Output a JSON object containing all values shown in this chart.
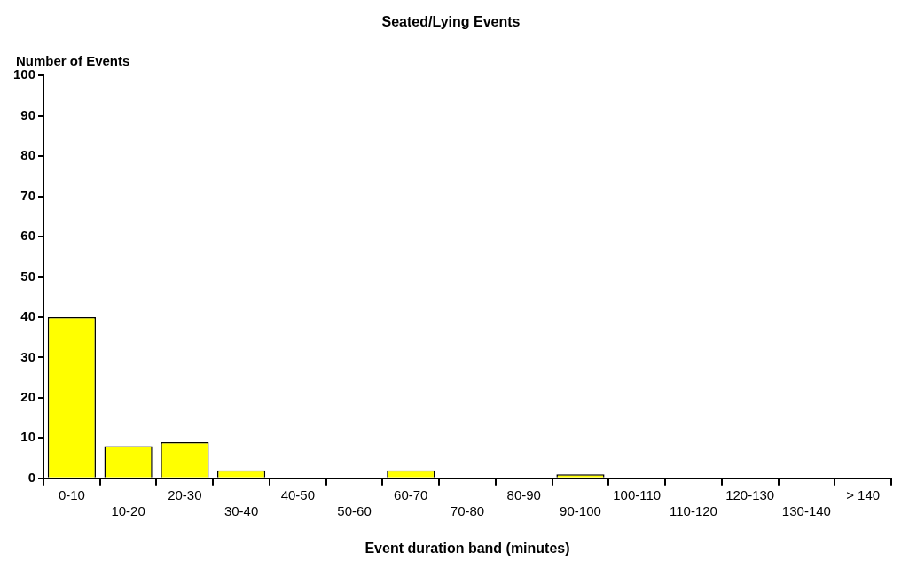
{
  "chart_data": {
    "type": "bar",
    "title": "Seated/Lying Events",
    "xlabel": "Event duration band (minutes)",
    "ylabel": "Number of Events",
    "categories": [
      "0-10",
      "10-20",
      "20-30",
      "30-40",
      "40-50",
      "50-60",
      "60-70",
      "70-80",
      "80-90",
      "90-100",
      "100-110",
      "110-120",
      "120-130",
      "130-140",
      "> 140"
    ],
    "values": [
      40,
      8,
      9,
      2,
      0,
      0,
      2,
      0,
      0,
      1,
      0,
      0,
      0,
      0,
      0
    ],
    "color": "#ffff00",
    "ylim": [
      0,
      100
    ],
    "yticks": [
      0,
      10,
      20,
      30,
      40,
      50,
      60,
      70,
      80,
      90,
      100
    ],
    "grid": false,
    "legend": false
  }
}
